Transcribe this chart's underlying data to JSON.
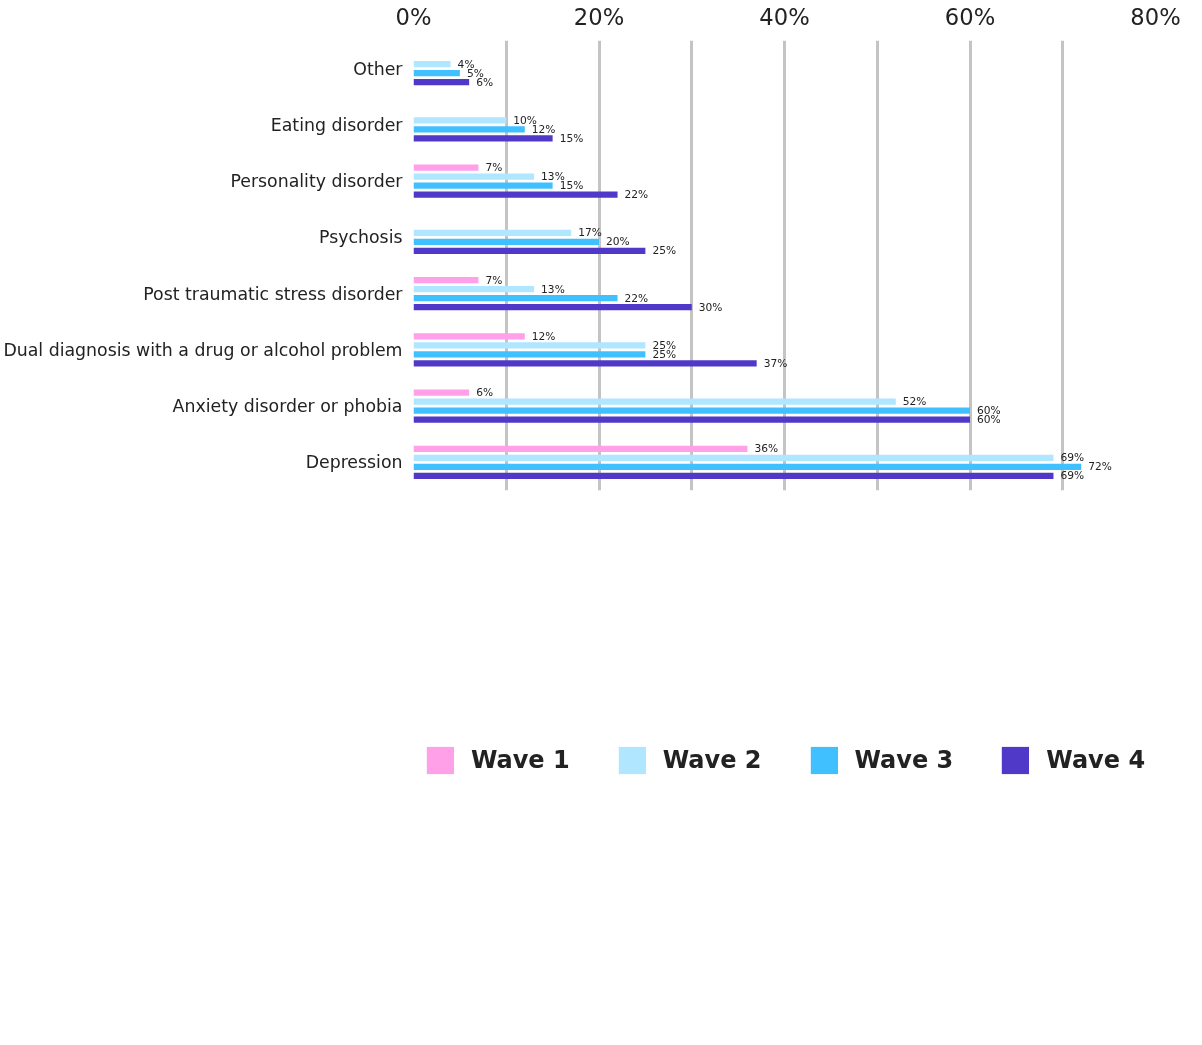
{
  "chart_data": {
    "type": "bar",
    "orientation": "horizontal",
    "categories": [
      "Other",
      "Eating disorder",
      "Personality disorder",
      "Psychosis",
      "Post traumatic stress disorder",
      "Dual diagnosis with a drug or alcohol problem",
      "Anxiety disorder or phobia",
      "Depression"
    ],
    "series": [
      {
        "name": "Wave 1",
        "color": "#ffa0e8",
        "values": [
          null,
          null,
          7,
          null,
          7,
          12,
          6,
          36
        ],
        "value_labels": [
          null,
          null,
          "7%",
          null,
          "7%",
          "12%",
          "6%",
          "36%"
        ]
      },
      {
        "name": "Wave 2",
        "color": "#b0e6ff",
        "values": [
          4,
          10,
          13,
          17,
          13,
          25,
          52,
          69
        ],
        "value_labels": [
          "4%",
          "10%",
          "13%",
          "17%",
          "13%",
          "25%",
          "52%",
          "69%"
        ]
      },
      {
        "name": "Wave 3",
        "color": "#40c0ff",
        "values": [
          5,
          12,
          15,
          20,
          22,
          25,
          60,
          72
        ],
        "value_labels": [
          "5%",
          "12%",
          "15%",
          "20%",
          "22%",
          "25%",
          "60%",
          "72%"
        ]
      },
      {
        "name": "Wave 4",
        "color": "#5038c8",
        "values": [
          6,
          15,
          22,
          25,
          30,
          37,
          60,
          69
        ],
        "value_labels": [
          "6%",
          "15%",
          "22%",
          "25%",
          "30%",
          "37%",
          "60%",
          "69%"
        ]
      }
    ],
    "xlim": [
      0,
      80
    ],
    "xticks": [
      {
        "value": 0,
        "label": "0%"
      },
      {
        "value": 10,
        "label": null
      },
      {
        "value": 20,
        "label": "20%"
      },
      {
        "value": 30,
        "label": null
      },
      {
        "value": 40,
        "label": "40%"
      },
      {
        "value": 50,
        "label": null
      },
      {
        "value": 60,
        "label": "60%"
      },
      {
        "value": 70,
        "label": null
      },
      {
        "value": 80,
        "label": "80%"
      }
    ],
    "grid": "x",
    "legend": "bottom"
  }
}
